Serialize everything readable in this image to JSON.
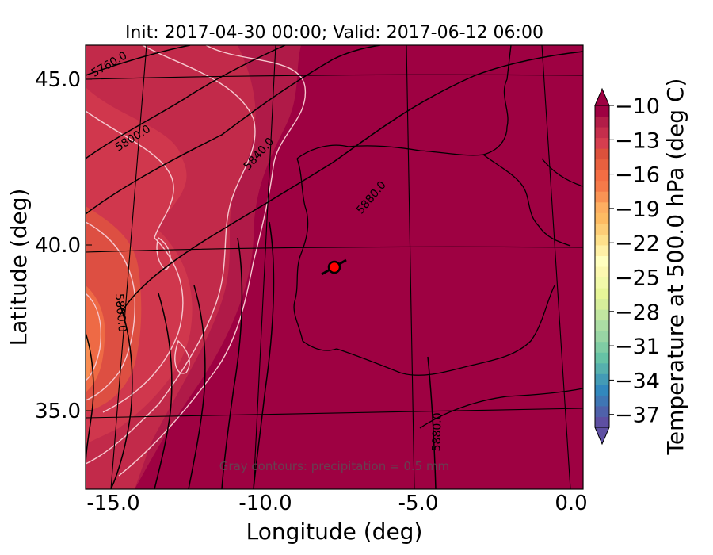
{
  "figure": {
    "title": "Init: 2017-04-30 00:00; Valid: 2017-06-12 06:00",
    "xlabel": "Longitude (deg)",
    "ylabel": "Latitude (deg)",
    "footnote": "Gray contours: precipitation = 0.5 mm"
  },
  "map": {
    "x_ticks": [
      "-15.0",
      "-10.0",
      "-5.0",
      "0.0"
    ],
    "y_ticks": [
      "45.0",
      "40.0",
      "35.0"
    ],
    "x_range": [
      -15.8,
      0.1
    ],
    "y_range": [
      32.6,
      46.1
    ],
    "background_color": "#9e0142",
    "marker": {
      "lon": -7.6,
      "lat": 39.35,
      "color": "#ff0000"
    },
    "contour_labels": [
      "5760.0",
      "5800.0",
      "5840.0",
      "5880.0",
      "5800.0",
      "5880.0"
    ]
  },
  "colorbar": {
    "label": "Temperature at 500.0 hPa (deg C)",
    "tick_labels": [
      "−10",
      "−13",
      "−16",
      "−19",
      "−22",
      "−25",
      "−28",
      "−31",
      "−34",
      "−37"
    ],
    "colors": [
      "#5e4fa2",
      "#4f61aa",
      "#3f76b4",
      "#3288bd",
      "#439bb5",
      "#56b0ad",
      "#66c2a5",
      "#7fcca4",
      "#98d5a4",
      "#abdda4",
      "#c1e6a0",
      "#d6ee9b",
      "#e6f598",
      "#f1f9a9",
      "#fbf8b0",
      "#ffffbf",
      "#fff0a6",
      "#fee08b",
      "#fdcd77",
      "#fdbb63",
      "#fdae61",
      "#f99354",
      "#f57a49",
      "#f46d43",
      "#e8603f",
      "#dc513c",
      "#d53e4f",
      "#c52e4c",
      "#b21d48",
      "#9e0142"
    ]
  }
}
